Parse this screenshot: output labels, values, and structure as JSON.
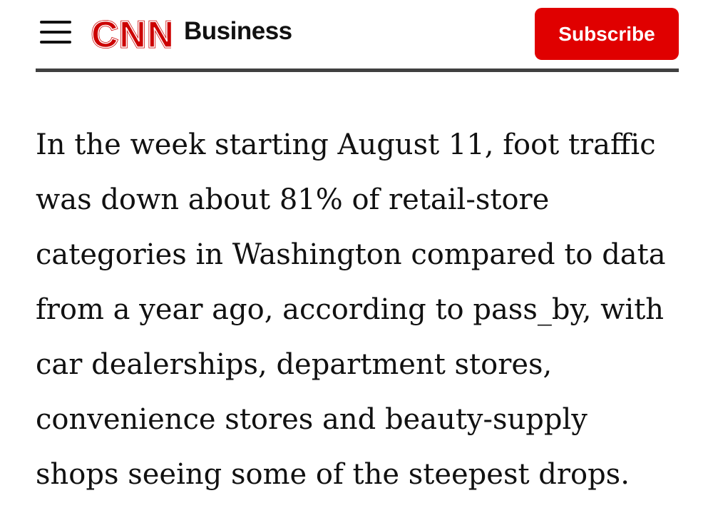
{
  "header": {
    "logo_text": "CNN",
    "section": "Business",
    "subscribe_label": "Subscribe",
    "brand_color": "#e00000"
  },
  "article": {
    "lines": [
      "In the week starting August 11, foot traffic",
      "was down about 81% of retail-store",
      "categories in Washington compared to data",
      "from a year ago, according to pass_by, with",
      "car dealerships, department stores,",
      "convenience stores and beauty-supply",
      "shops seeing some of the steepest drops."
    ]
  }
}
